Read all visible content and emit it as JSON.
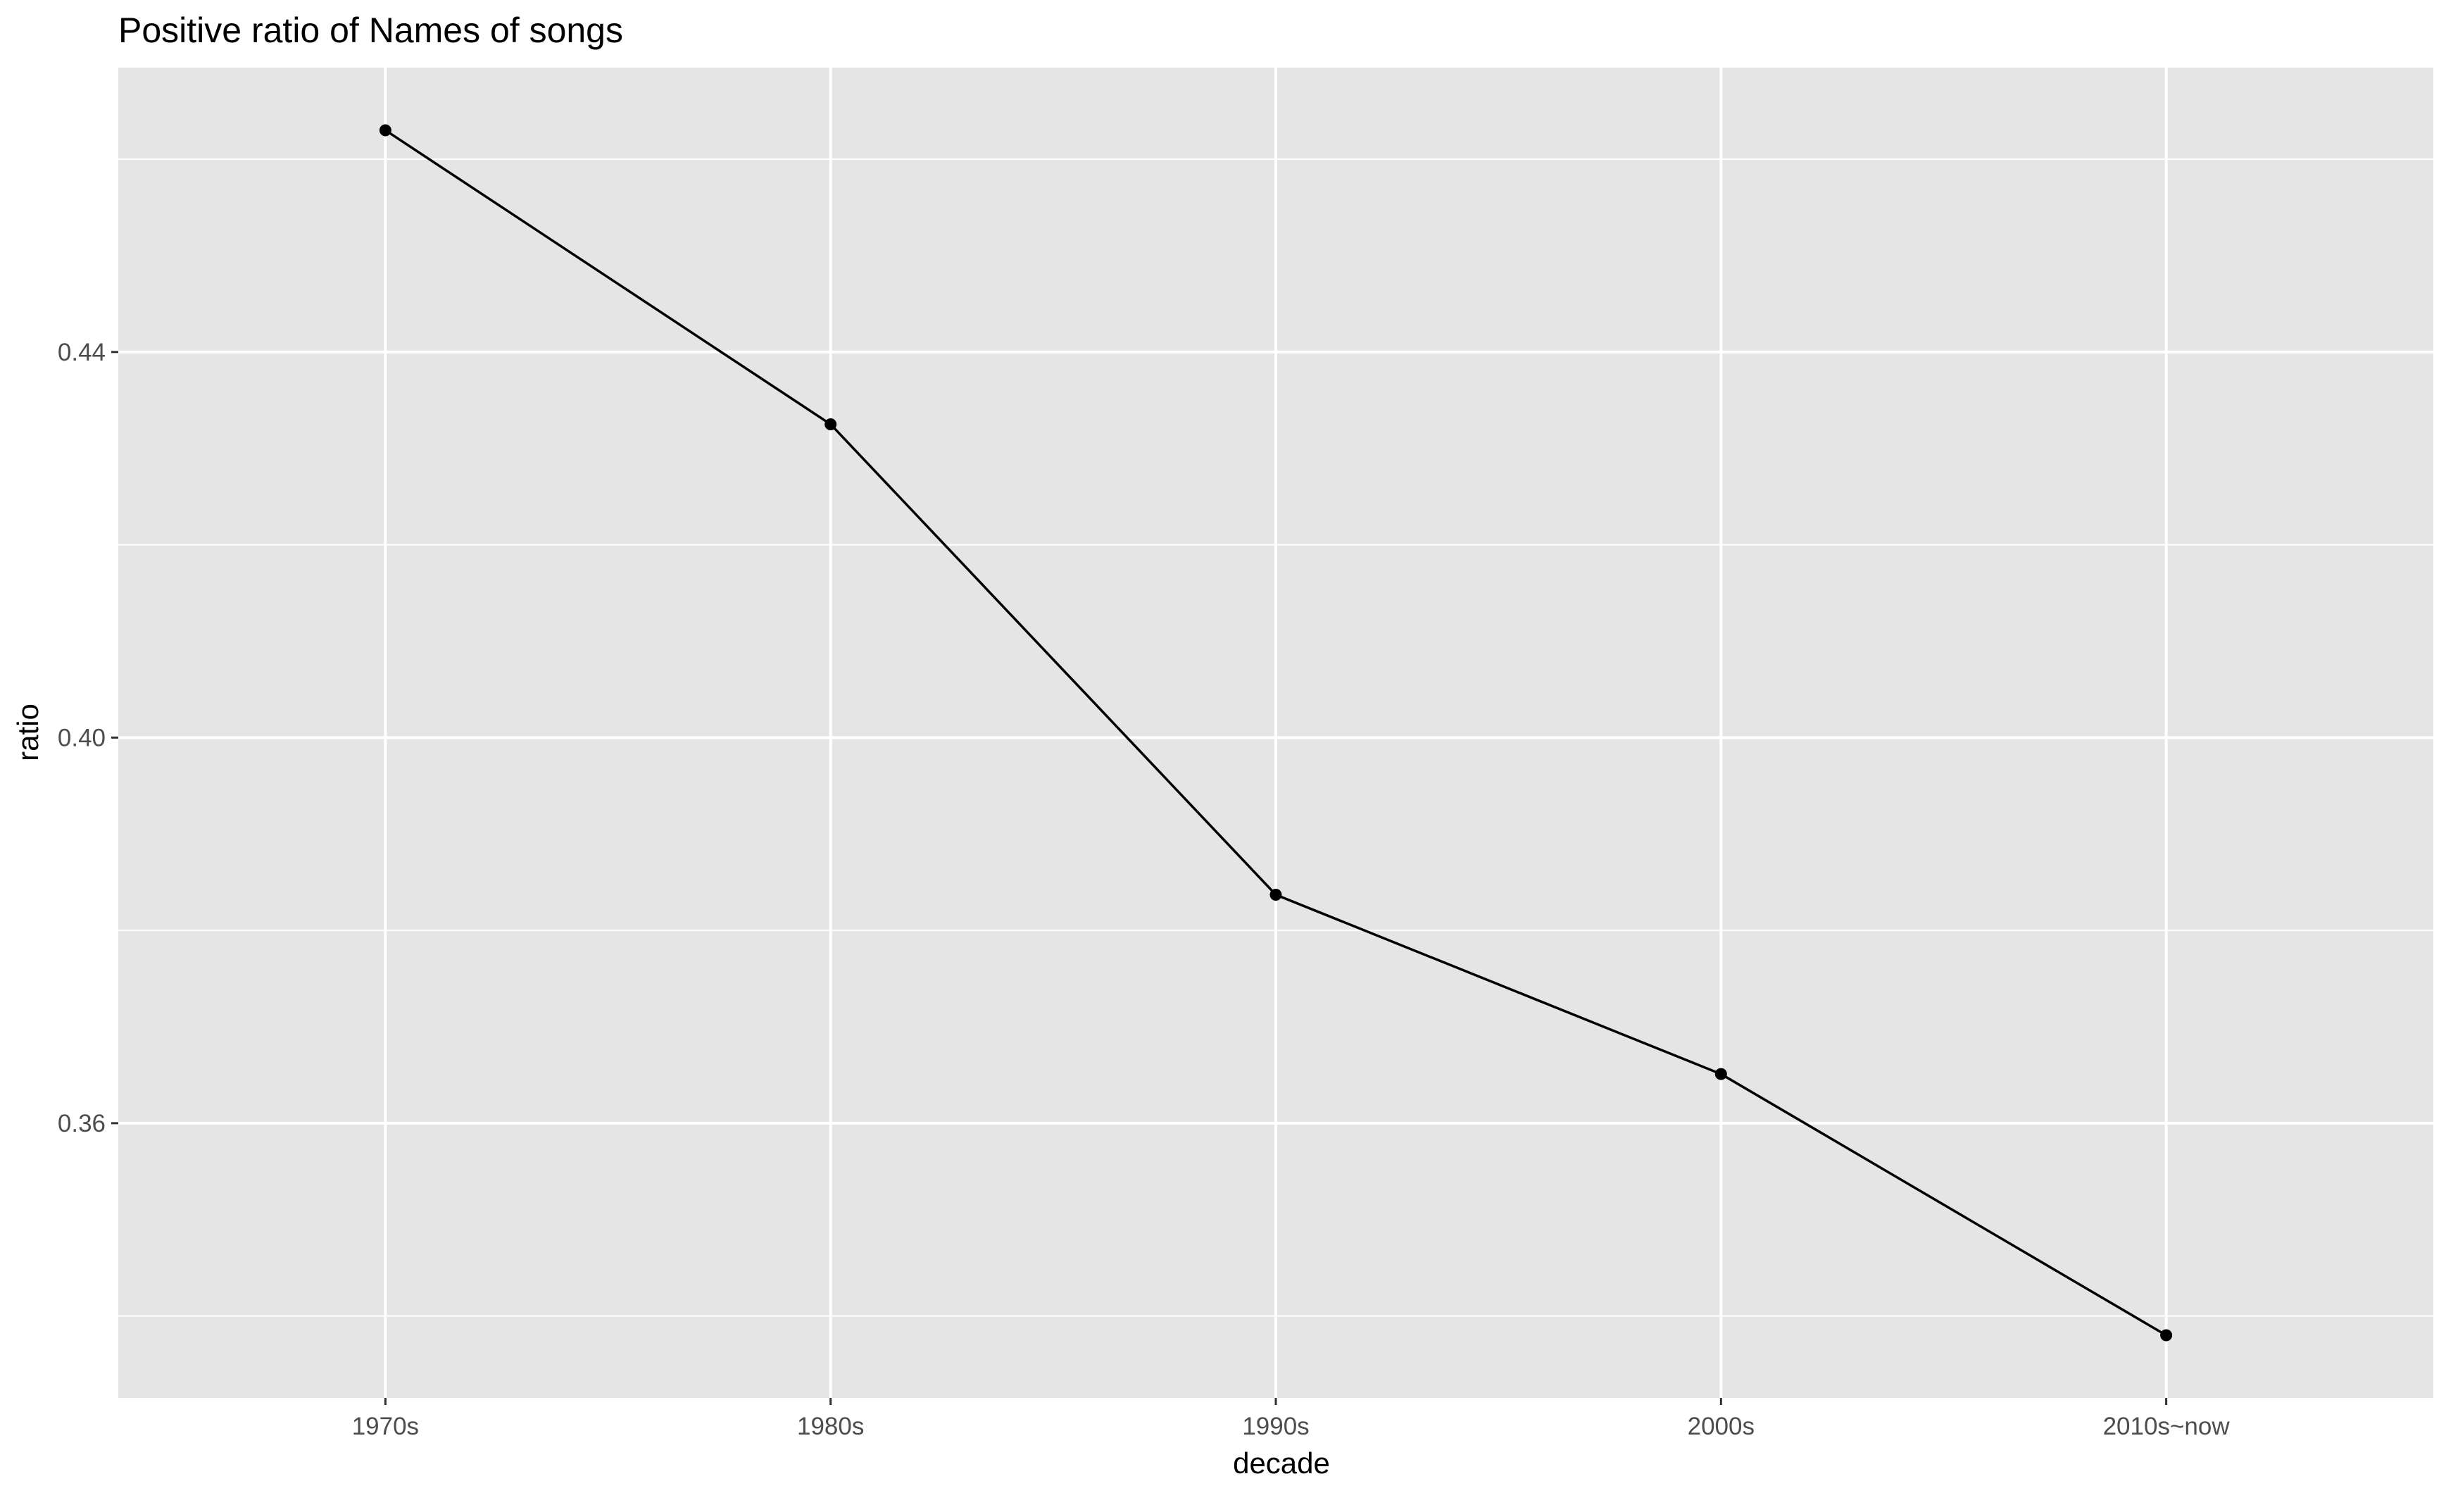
{
  "chart_data": {
    "type": "line",
    "title": "Positive ratio of Names of songs",
    "xlabel": "decade",
    "ylabel": "ratio",
    "categories": [
      "1970s",
      "1980s",
      "1990s",
      "2000s",
      "2010s~now"
    ],
    "series": [
      {
        "values": [
          0.463,
          0.4325,
          0.3837,
          0.3651,
          0.338
        ]
      }
    ],
    "ylim": [
      0.3315,
      0.4695
    ],
    "yticks": [
      0.36,
      0.4,
      0.44
    ],
    "ytick_labels": [
      "0.36",
      "0.40",
      "0.44"
    ],
    "grid": true,
    "legend": "none",
    "colors": {
      "panel_background": "#e5e5e5",
      "grid": "#ffffff",
      "line": "#000000",
      "point": "#000000",
      "tick_label": "#4d4d4d"
    }
  }
}
